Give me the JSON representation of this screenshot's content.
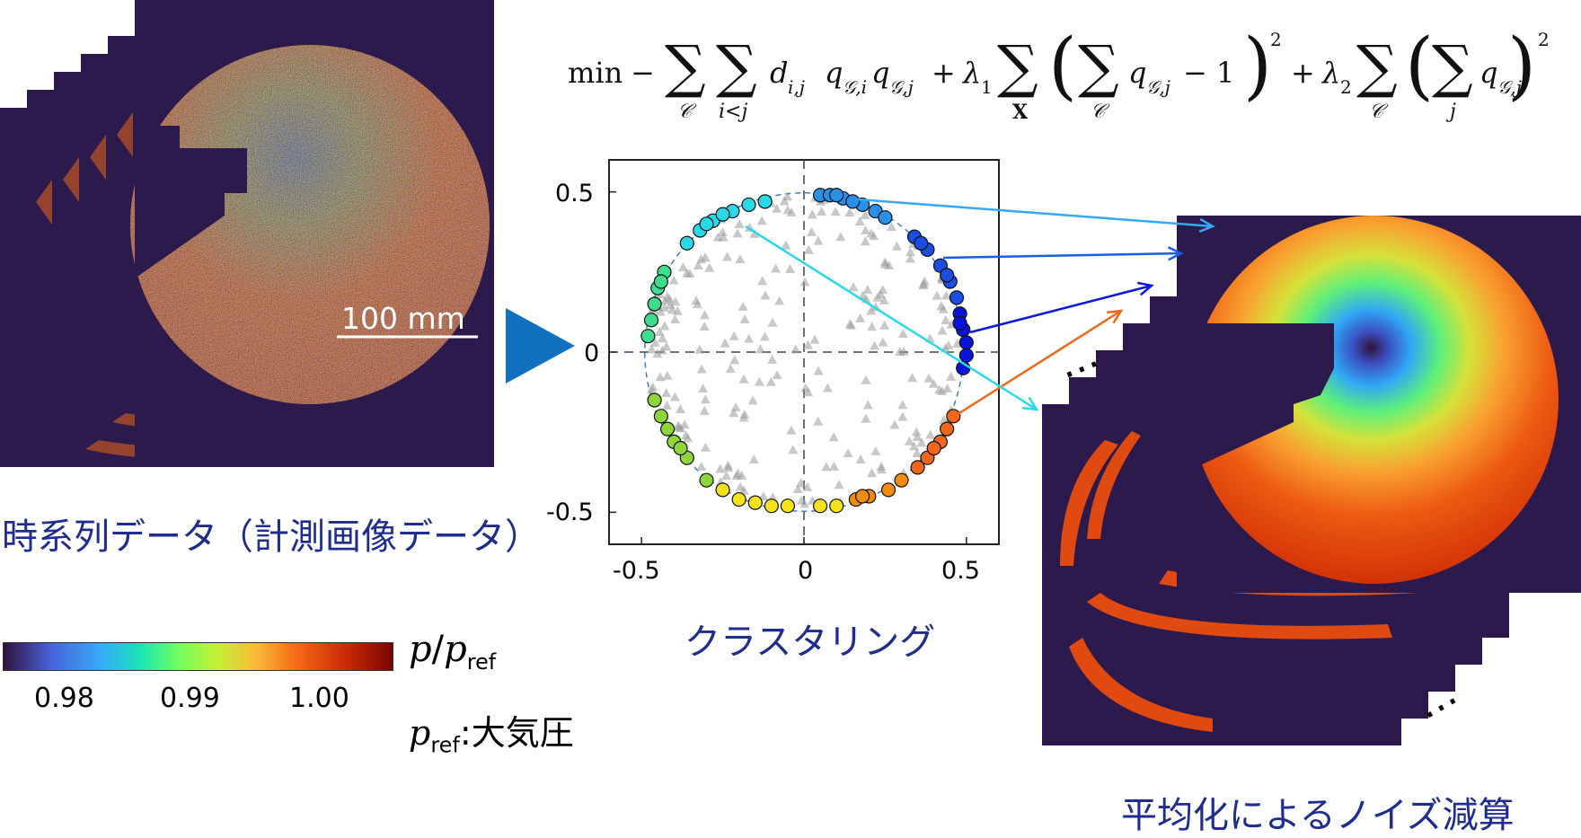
{
  "left_panel": {
    "caption": "時系列データ（計測画像データ）",
    "scale_bar_label": "100 mm"
  },
  "colorbar": {
    "label_p": "p",
    "label_slash": "/",
    "label_pref": "p",
    "label_pref_sub": "ref",
    "ticks": [
      "0.98",
      "0.99",
      "1.00"
    ],
    "ref_p": "p",
    "ref_sub": "ref",
    "ref_text": ":大気圧",
    "colors": [
      "#30123b",
      "#4662d7",
      "#36aaf9",
      "#1ae4b6",
      "#72fe5e",
      "#c7ef34",
      "#faba39",
      "#f66b19",
      "#ca2a04",
      "#7a0403"
    ]
  },
  "formula": {
    "min": "min",
    "minus": "−",
    "sum": "∑",
    "sub_c": "𝒞",
    "sub_i_lt_j": "i<j",
    "d_term": "d",
    "d_sub": "i,j",
    "q": "q",
    "q_sub_i": "𝒢,i",
    "q_sub_j": "𝒢,j",
    "plus": "+",
    "lambda": "λ",
    "lambda1_sub": "1",
    "lambda2_sub": "2",
    "sub_X": "X",
    "sub_j": "j",
    "minus_one": "− 1",
    "square": "2"
  },
  "scatter": {
    "caption": "クラスタリング",
    "x_ticks": [
      "-0.5",
      "0",
      "0.5"
    ],
    "y_ticks": [
      "0.5",
      "0",
      "-0.5"
    ]
  },
  "right_panel": {
    "caption": "平均化によるノイズ減算",
    "ellipsis": "⋯"
  },
  "chart_data": {
    "type": "scatter",
    "title": "",
    "xlabel": "",
    "ylabel": "",
    "xlim": [
      -0.6,
      0.6
    ],
    "ylim": [
      -0.6,
      0.6
    ],
    "grid": "dashed axes at 0",
    "series": [
      {
        "marker": "circle",
        "color": "#2a8fe6",
        "points": [
          [
            0.05,
            0.49
          ],
          [
            0.12,
            0.48
          ],
          [
            0.18,
            0.46
          ],
          [
            0.22,
            0.44
          ],
          [
            0.08,
            0.49
          ],
          [
            0.15,
            0.47
          ],
          [
            0.25,
            0.42
          ],
          [
            0.1,
            0.49
          ]
        ]
      },
      {
        "marker": "circle",
        "color": "#1a4de0",
        "points": [
          [
            0.34,
            0.36
          ],
          [
            0.38,
            0.32
          ],
          [
            0.42,
            0.27
          ],
          [
            0.45,
            0.22
          ],
          [
            0.47,
            0.17
          ],
          [
            0.36,
            0.34
          ],
          [
            0.44,
            0.24
          ]
        ]
      },
      {
        "marker": "circle",
        "color": "#0a14d8",
        "points": [
          [
            0.48,
            0.12
          ],
          [
            0.49,
            0.07
          ],
          [
            0.5,
            0.03
          ],
          [
            0.5,
            -0.01
          ],
          [
            0.49,
            -0.05
          ],
          [
            0.48,
            0.09
          ]
        ]
      },
      {
        "marker": "circle",
        "color": "#f0661a",
        "points": [
          [
            0.46,
            -0.2
          ],
          [
            0.44,
            -0.24
          ],
          [
            0.42,
            -0.28
          ],
          [
            0.38,
            -0.33
          ],
          [
            0.35,
            -0.36
          ],
          [
            0.4,
            -0.3
          ]
        ]
      },
      {
        "marker": "circle",
        "color": "#f08c10",
        "points": [
          [
            0.3,
            -0.4
          ],
          [
            0.26,
            -0.43
          ],
          [
            0.2,
            -0.45
          ],
          [
            0.16,
            -0.46
          ],
          [
            0.18,
            -0.45
          ]
        ]
      },
      {
        "marker": "circle",
        "color": "#f5e21a",
        "points": [
          [
            -0.05,
            -0.48
          ],
          [
            -0.1,
            -0.48
          ],
          [
            -0.15,
            -0.47
          ],
          [
            -0.2,
            -0.46
          ],
          [
            0.05,
            -0.48
          ],
          [
            0.1,
            -0.48
          ],
          [
            -0.25,
            -0.43
          ]
        ]
      },
      {
        "marker": "circle",
        "color": "#8fd43a",
        "points": [
          [
            -0.3,
            -0.4
          ],
          [
            -0.36,
            -0.33
          ],
          [
            -0.4,
            -0.28
          ],
          [
            -0.44,
            -0.2
          ],
          [
            -0.46,
            -0.15
          ],
          [
            -0.42,
            -0.24
          ],
          [
            -0.38,
            -0.3
          ]
        ]
      },
      {
        "marker": "circle",
        "color": "#3ddc8e",
        "points": [
          [
            -0.47,
            0.1
          ],
          [
            -0.46,
            0.15
          ],
          [
            -0.45,
            0.2
          ],
          [
            -0.43,
            0.25
          ],
          [
            -0.48,
            0.05
          ],
          [
            -0.44,
            0.22
          ]
        ]
      },
      {
        "marker": "circle",
        "color": "#2ad9e8",
        "points": [
          [
            -0.36,
            0.34
          ],
          [
            -0.32,
            0.38
          ],
          [
            -0.28,
            0.41
          ],
          [
            -0.22,
            0.44
          ],
          [
            -0.17,
            0.46
          ],
          [
            -0.12,
            0.47
          ],
          [
            -0.3,
            0.4
          ],
          [
            -0.25,
            0.43
          ]
        ]
      }
    ]
  }
}
